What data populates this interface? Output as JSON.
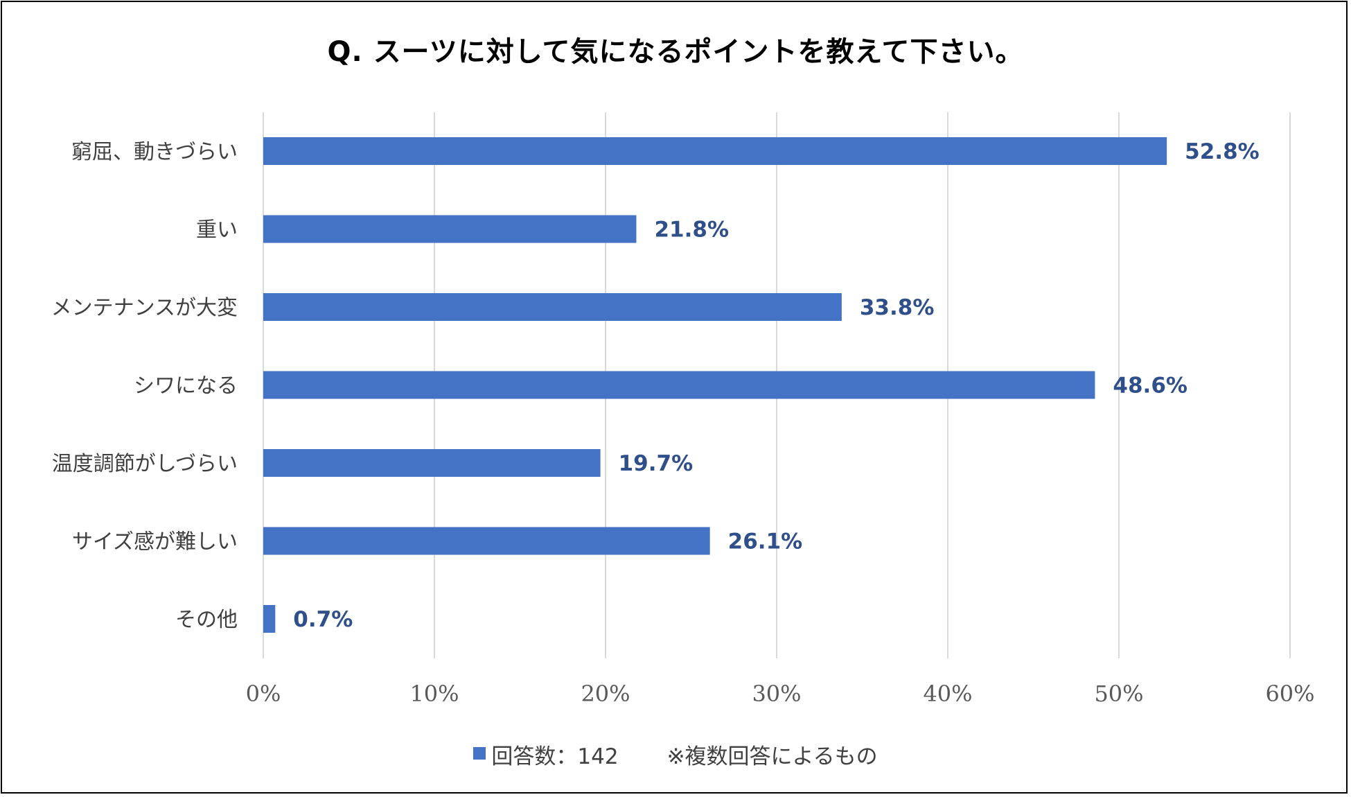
{
  "chart_data": {
    "type": "bar",
    "orientation": "horizontal",
    "title": "Q. スーツに対して気になるポイントを教えて下さい。",
    "categories": [
      "窮屈、動きづらい",
      "重い",
      "メンテナンスが大変",
      "シワになる",
      "温度調節がしづらい",
      "サイズ感が難しい",
      "その他"
    ],
    "values": [
      52.8,
      21.8,
      33.8,
      48.6,
      19.7,
      26.1,
      0.7
    ],
    "value_labels": [
      "52.8%",
      "21.8%",
      "33.8%",
      "48.6%",
      "19.7%",
      "26.1%",
      "0.7%"
    ],
    "xlim": [
      0,
      60
    ],
    "x_ticks": [
      0,
      10,
      20,
      30,
      40,
      50,
      60
    ],
    "x_tick_labels": [
      "0%",
      "10%",
      "20%",
      "30%",
      "40%",
      "50%",
      "60%"
    ],
    "xlabel": "",
    "ylabel": "",
    "grid": "vertical",
    "legend": {
      "position": "bottom",
      "series_label": "回答数：142",
      "note": "※複数回答によるもの"
    }
  },
  "colors": {
    "bar": "#4472C4",
    "data_label": "#2F4F8A",
    "grid": "#D9D9D9"
  }
}
